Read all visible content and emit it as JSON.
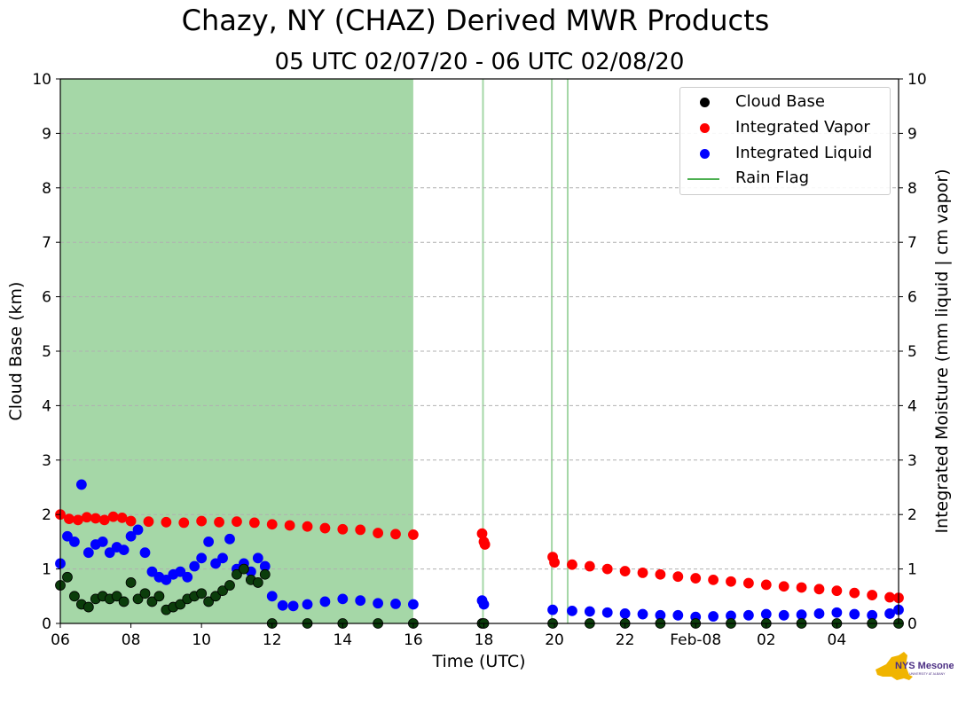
{
  "title": "Chazy, NY (CHAZ) Derived MWR Products",
  "subtitle": "05 UTC 02/07/20 - 06 UTC 02/08/20",
  "logo": {
    "text": "NYS Mesonet",
    "subtext": "UNIVERSITY AT ALBANY"
  },
  "colors": {
    "cloud_base": "#000000",
    "cloud_base_fill": "#0b3d0b",
    "vapor": "#ff0000",
    "liquid": "#0000ff",
    "rain_flag": "#4caf50",
    "grid": "#b0b0b0"
  },
  "chart_data": {
    "type": "scatter",
    "x_unit": "hours since 06 UTC 02/07/20",
    "x_range": [
      0,
      23.75
    ],
    "x_ticks": [
      0,
      2,
      4,
      6,
      8,
      10,
      12,
      14,
      16,
      18,
      20,
      22
    ],
    "x_tick_labels": [
      "06",
      "08",
      "10",
      "12",
      "14",
      "16",
      "18",
      "20",
      "22",
      "Feb-08",
      "02",
      "04"
    ],
    "xlabel": "Time (UTC)",
    "ylabel_left": "Cloud Base (km)",
    "ylabel_right": "Integrated Moisture (mm liquid | cm vapor)",
    "ylim_left": [
      0,
      10
    ],
    "ylim_right": [
      0,
      10
    ],
    "y_ticks": [
      0,
      1,
      2,
      3,
      4,
      5,
      6,
      7,
      8,
      9,
      10
    ],
    "grid": "horizontal dashed",
    "legend_position": "top-right",
    "legend": [
      {
        "label": "Cloud Base",
        "kind": "marker",
        "color": "#000000"
      },
      {
        "label": "Integrated Vapor",
        "kind": "marker",
        "color": "#ff0000"
      },
      {
        "label": "Integrated Liquid",
        "kind": "marker",
        "color": "#0000ff"
      },
      {
        "label": "Rain Flag",
        "kind": "line",
        "color": "#4caf50"
      }
    ],
    "rain_flag_periods": [
      [
        0.0,
        10.0
      ],
      [
        11.95,
        12.0
      ],
      [
        13.9,
        13.95
      ],
      [
        14.35,
        14.4
      ]
    ],
    "series": [
      {
        "name": "Integrated Vapor",
        "color": "#ff0000",
        "x": [
          0.0,
          0.25,
          0.5,
          0.75,
          1.0,
          1.25,
          1.5,
          1.75,
          2.0,
          2.5,
          3.0,
          3.5,
          4.0,
          4.5,
          5.0,
          5.5,
          6.0,
          6.5,
          7.0,
          7.5,
          8.0,
          8.5,
          9.0,
          9.5,
          10.0,
          11.95,
          12.0,
          12.03,
          13.95,
          14.0,
          14.5,
          15.0,
          15.5,
          16.0,
          16.5,
          17.0,
          17.5,
          18.0,
          18.5,
          19.0,
          19.5,
          20.0,
          20.5,
          21.0,
          21.5,
          22.0,
          22.5,
          23.0,
          23.5,
          23.75
        ],
        "values": [
          2.0,
          1.92,
          1.9,
          1.95,
          1.93,
          1.9,
          1.96,
          1.94,
          1.88,
          1.87,
          1.86,
          1.85,
          1.88,
          1.86,
          1.87,
          1.85,
          1.82,
          1.8,
          1.78,
          1.75,
          1.73,
          1.72,
          1.66,
          1.64,
          1.63,
          1.65,
          1.5,
          1.45,
          1.22,
          1.12,
          1.08,
          1.05,
          1.0,
          0.96,
          0.93,
          0.9,
          0.86,
          0.83,
          0.8,
          0.77,
          0.74,
          0.71,
          0.68,
          0.66,
          0.63,
          0.6,
          0.56,
          0.52,
          0.48,
          0.47
        ]
      },
      {
        "name": "Integrated Liquid",
        "color": "#0000ff",
        "x": [
          0.0,
          0.2,
          0.4,
          0.6,
          0.8,
          1.0,
          1.2,
          1.4,
          1.6,
          1.8,
          2.0,
          2.2,
          2.4,
          2.6,
          2.8,
          3.0,
          3.2,
          3.4,
          3.6,
          3.8,
          4.0,
          4.2,
          4.4,
          4.6,
          4.8,
          5.0,
          5.2,
          5.4,
          5.6,
          5.8,
          6.0,
          6.3,
          6.6,
          7.0,
          7.5,
          8.0,
          8.5,
          9.0,
          9.5,
          10.0,
          11.95,
          12.0,
          13.95,
          14.5,
          15.0,
          15.5,
          16.0,
          16.5,
          17.0,
          17.5,
          18.0,
          18.5,
          19.0,
          19.5,
          20.0,
          20.5,
          21.0,
          21.5,
          22.0,
          22.5,
          23.0,
          23.5,
          23.75
        ],
        "values": [
          1.1,
          1.6,
          1.5,
          2.55,
          1.3,
          1.45,
          1.5,
          1.3,
          1.4,
          1.35,
          1.6,
          1.72,
          1.3,
          0.95,
          0.85,
          0.8,
          0.9,
          0.95,
          0.85,
          1.05,
          1.2,
          1.5,
          1.1,
          1.2,
          1.55,
          1.0,
          1.1,
          0.95,
          1.2,
          1.05,
          0.5,
          0.33,
          0.32,
          0.35,
          0.4,
          0.45,
          0.42,
          0.37,
          0.36,
          0.35,
          0.42,
          0.35,
          0.25,
          0.23,
          0.22,
          0.2,
          0.18,
          0.17,
          0.15,
          0.15,
          0.12,
          0.13,
          0.14,
          0.15,
          0.17,
          0.15,
          0.16,
          0.18,
          0.2,
          0.17,
          0.15,
          0.18,
          0.25
        ]
      },
      {
        "name": "Cloud Base",
        "color": "#000000",
        "x": [
          0.0,
          0.2,
          0.4,
          0.6,
          0.8,
          1.0,
          1.2,
          1.4,
          1.6,
          1.8,
          2.0,
          2.2,
          2.4,
          2.6,
          2.8,
          3.0,
          3.2,
          3.4,
          3.6,
          3.8,
          4.0,
          4.2,
          4.4,
          4.6,
          4.8,
          5.0,
          5.2,
          5.4,
          5.6,
          5.8,
          6.0,
          7.0,
          8.0,
          9.0,
          10.0,
          11.95,
          12.0,
          13.95,
          15.0,
          16.0,
          17.0,
          18.0,
          19.0,
          20.0,
          21.0,
          22.0,
          23.0,
          23.75
        ],
        "values": [
          0.7,
          0.85,
          0.5,
          0.35,
          0.3,
          0.45,
          0.5,
          0.45,
          0.5,
          0.4,
          0.75,
          0.45,
          0.55,
          0.4,
          0.5,
          0.25,
          0.3,
          0.35,
          0.45,
          0.5,
          0.55,
          0.4,
          0.5,
          0.6,
          0.7,
          0.9,
          1.0,
          0.8,
          0.75,
          0.9,
          0.0,
          0.0,
          0.0,
          0.0,
          0.0,
          0.0,
          0.0,
          0.0,
          0.0,
          0.0,
          0.0,
          0.0,
          0.0,
          0.0,
          0.0,
          0.0,
          0.0,
          0.0
        ]
      }
    ]
  }
}
